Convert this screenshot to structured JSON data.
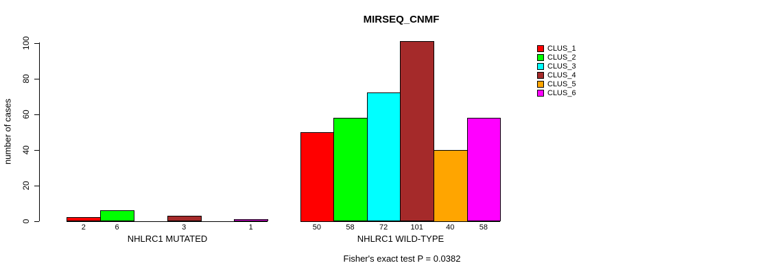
{
  "chart_data": {
    "type": "bar",
    "title": "MIRSEQ_CNMF",
    "ylabel": "number of cases",
    "ylim": [
      0,
      100
    ],
    "yticks": [
      0,
      20,
      40,
      60,
      80,
      100
    ],
    "grid": false,
    "legend": {
      "position": "right",
      "entries": [
        {
          "label": "CLUS_1",
          "color": "#FF0000"
        },
        {
          "label": "CLUS_2",
          "color": "#00FF00"
        },
        {
          "label": "CLUS_3",
          "color": "#00FFFF"
        },
        {
          "label": "CLUS_4",
          "color": "#A52A2A"
        },
        {
          "label": "CLUS_5",
          "color": "#FFA500"
        },
        {
          "label": "CLUS_6",
          "color": "#FF00FF"
        }
      ]
    },
    "groups": [
      {
        "key": "mutated",
        "label": "NHLRC1 MUTATED",
        "values": [
          2,
          6,
          0,
          3,
          0,
          1
        ],
        "bar_labels": [
          "2",
          "6",
          "",
          "3",
          "",
          "1"
        ]
      },
      {
        "key": "wildtype",
        "label": "NHLRC1 WILD-TYPE",
        "values": [
          50,
          58,
          72,
          101,
          40,
          58
        ],
        "bar_labels": [
          "50",
          "58",
          "72",
          "101",
          "40",
          "58"
        ]
      }
    ],
    "annotation": "Fisher's exact test P = 0.0382",
    "bar_border_color": "#000000",
    "axis_color": "#000000",
    "background_color": "#FFFFFF"
  }
}
